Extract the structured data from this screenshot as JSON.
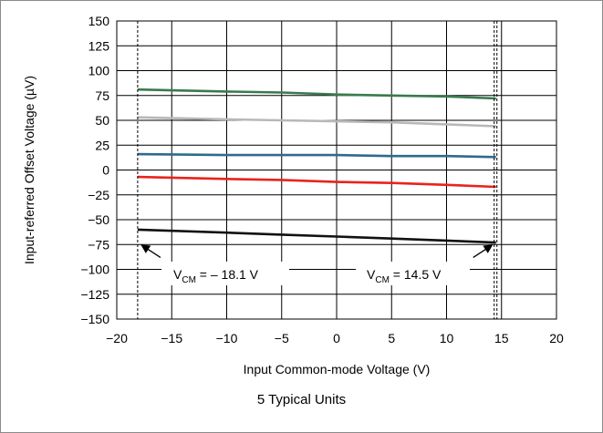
{
  "chart_data": {
    "type": "line",
    "xlabel": "Input Common-mode Voltage (V)",
    "ylabel": "Input-referred Offset Voltage (µV)",
    "xlim": [
      -20,
      20
    ],
    "ylim": [
      -150,
      150
    ],
    "xticks": [
      -20,
      -15,
      -10,
      -5,
      0,
      5,
      10,
      15,
      20
    ],
    "xtick_labels": [
      "−20",
      "−15",
      "−10",
      "−5",
      "0",
      "5",
      "10",
      "15",
      "20"
    ],
    "yticks": [
      150,
      125,
      100,
      75,
      50,
      25,
      0,
      -25,
      -50,
      -75,
      -100,
      -125,
      -150
    ],
    "ytick_labels": [
      "150",
      "125",
      "100",
      "75",
      "50",
      "25",
      "0",
      "−25",
      "−50",
      "−75",
      "−100",
      "−125",
      "−150"
    ],
    "grid": true,
    "series": [
      {
        "color": "#3a7a4e",
        "x": [
          -18.1,
          -10,
          -5,
          0,
          5,
          10,
          14.5
        ],
        "values": [
          81,
          79,
          78,
          76,
          75,
          74,
          72
        ]
      },
      {
        "color": "#b8b8b8",
        "x": [
          -18.1,
          -10,
          -5,
          0,
          5,
          10,
          14.5
        ],
        "values": [
          53,
          51,
          50,
          49,
          48,
          46,
          44
        ]
      },
      {
        "color": "#2f6a8c",
        "x": [
          -18.1,
          -10,
          -5,
          0,
          5,
          10,
          14.5
        ],
        "values": [
          16,
          15,
          15,
          15,
          14,
          14,
          13
        ]
      },
      {
        "color": "#e8241c",
        "x": [
          -18.1,
          -10,
          -5,
          0,
          5,
          10,
          14.5
        ],
        "values": [
          -7,
          -9,
          -10,
          -12,
          -13,
          -15,
          -17
        ]
      },
      {
        "color": "#111111",
        "x": [
          -18.1,
          -10,
          -5,
          0,
          5,
          10,
          14.5
        ],
        "values": [
          -60,
          -63,
          -65,
          -67,
          -69,
          -71,
          -73
        ]
      }
    ],
    "markers": [
      {
        "x": -18.1,
        "text_main": "V",
        "text_sub": "CM",
        "text_rest": " = – 18.1 V"
      },
      {
        "x": 14.5,
        "text_main": "V",
        "text_sub": "CM",
        "text_rest": " = 14.5 V"
      }
    ]
  },
  "caption": "5 Typical Units"
}
